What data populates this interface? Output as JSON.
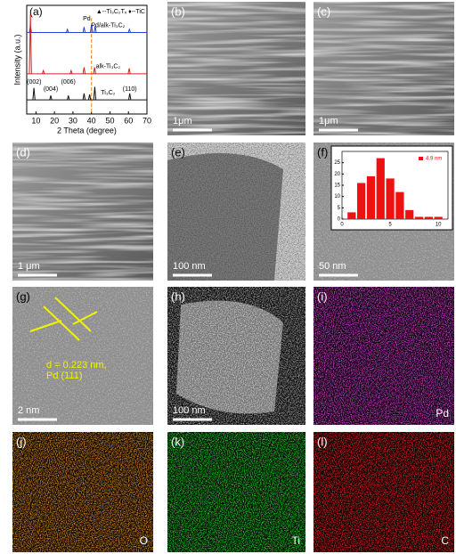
{
  "chart_data": {
    "type": "line",
    "label": "(a)",
    "xlabel": "2 Theta (degree)",
    "ylabel": "Intensity (a.u.)",
    "legend": "▲--Ti₃C₂Tₓ ♦--TiC",
    "xlim": [
      5,
      70
    ],
    "xticks": [
      10,
      20,
      30,
      40,
      50,
      60,
      70
    ],
    "ylim": [
      0,
      100
    ],
    "reference_line": {
      "label": "Pd",
      "x": 40,
      "color": "#f39c34"
    },
    "series": [
      {
        "name": "Pd/alk-Ti₃C₂",
        "color": "#2b3fd0",
        "baseline": 75,
        "x": [
          7,
          27,
          36,
          40,
          42,
          60.5
        ],
        "values": [
          6,
          3,
          5,
          7,
          6,
          3
        ]
      },
      {
        "name": "alk-Ti₃C₂",
        "color": "#d62020",
        "baseline": 37,
        "x": [
          7,
          14,
          29,
          36,
          41.7,
          60.4
        ],
        "values": [
          55,
          3,
          3,
          6,
          6,
          5
        ]
      },
      {
        "name": "Ti₃C₂",
        "color": "#111111",
        "baseline": 13,
        "x": [
          8.9,
          18,
          27.5,
          36,
          39,
          41.8,
          60.7
        ],
        "values": [
          11,
          4,
          4,
          6,
          5,
          12,
          6
        ]
      }
    ],
    "annotations": [
      {
        "text": "(002)",
        "x": 9
      },
      {
        "text": "(004)",
        "x": 18
      },
      {
        "text": "(006)",
        "x": 27.5
      },
      {
        "text": "(110)",
        "x": 60.7
      }
    ]
  },
  "panels": [
    {
      "label": "(b)",
      "scale": "1μm"
    },
    {
      "label": "(c)",
      "scale": "1μm"
    },
    {
      "label": "(d)",
      "scale": "1 μm"
    },
    {
      "label": "(e)",
      "scale": "100 nm"
    },
    {
      "label": "(f)",
      "scale": "50 nm"
    },
    {
      "label": "(g)",
      "scale": "2 nm",
      "note": [
        "d = 0.223 nm,",
        "Pd (111)"
      ]
    },
    {
      "label": "(h)",
      "scale": "100 nm"
    },
    {
      "label": "(i)",
      "element": "Pd",
      "color": "#d23ad2"
    },
    {
      "label": "(j)",
      "element": "O",
      "color": "#e08a1c"
    },
    {
      "label": "(k)",
      "element": "Ti",
      "color": "#22d028"
    },
    {
      "label": "(l)",
      "element": "C",
      "color": "#e02020"
    }
  ],
  "inset": {
    "type": "histogram",
    "legend": "4.9 nm",
    "color": "#ee1111",
    "bins": [
      0.5,
      1.5,
      2.5,
      3.5,
      4.5,
      5.5,
      6.5,
      7.5,
      8.5,
      9.5,
      10.5
    ],
    "counts": [
      3,
      16,
      19,
      27,
      18,
      12,
      4,
      1,
      1,
      1
    ],
    "xlim": [
      0,
      11
    ],
    "ylim": [
      0,
      30
    ],
    "xticks": [
      0,
      5,
      10
    ],
    "yticks": [
      0,
      5,
      10,
      15,
      20,
      25
    ]
  }
}
